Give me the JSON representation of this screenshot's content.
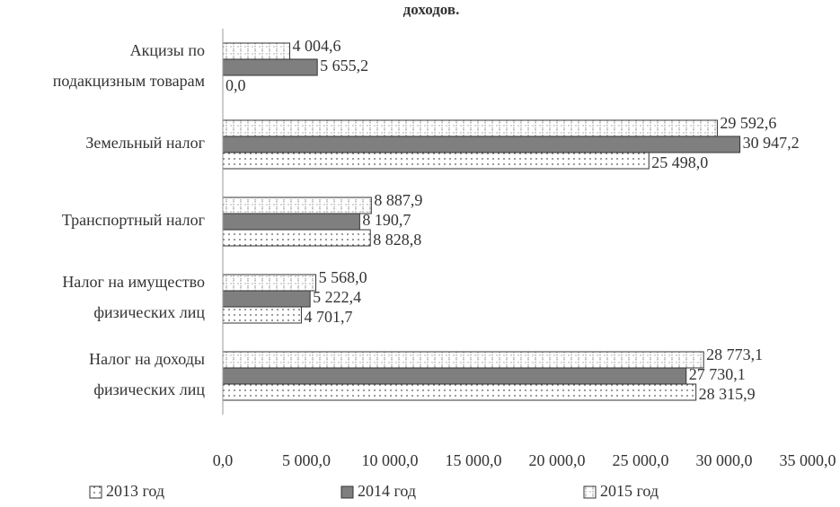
{
  "chart_data": {
    "type": "bar",
    "orientation": "horizontal",
    "title": "доходов.",
    "categories": [
      "Акцизы по\nподакцизным товарам",
      "Земельный налог",
      "Транспортный налог",
      "Налог на имущество\nфизических лиц",
      "Налог на доходы\nфизических лиц"
    ],
    "series": [
      {
        "name": "2013 год",
        "color": "#ffffff",
        "pattern": "dots",
        "values": [
          0.0,
          25498.0,
          8828.8,
          4701.7,
          28315.9
        ],
        "value_labels": [
          "0,0",
          "25 498,0",
          "8 828,8",
          "4 701,7",
          "28 315,9"
        ]
      },
      {
        "name": "2014 год",
        "color": "#7f7f7f",
        "pattern": "solid",
        "values": [
          5655.2,
          30947.2,
          8190.7,
          5222.4,
          27730.1
        ],
        "value_labels": [
          "5 655,2",
          "30 947,2",
          "8 190,7",
          "5 222,4",
          "27 730,1"
        ]
      },
      {
        "name": "2015 год",
        "color": "#ffffff",
        "pattern": "grid",
        "values": [
          4004.6,
          29592.6,
          8887.9,
          5568.0,
          28773.1
        ],
        "value_labels": [
          "4 004,6",
          "29 592,6",
          "8 887,9",
          "5 568,0",
          "28 773,1"
        ]
      }
    ],
    "xlim": [
      0,
      35000
    ],
    "xticks": [
      {
        "value": 0,
        "label": "0,0"
      },
      {
        "value": 5000,
        "label": "5 000,0"
      },
      {
        "value": 10000,
        "label": "10 000,0"
      },
      {
        "value": 15000,
        "label": "15 000,0"
      },
      {
        "value": 20000,
        "label": "20 000,0"
      },
      {
        "value": 25000,
        "label": "25 000,0"
      },
      {
        "value": 30000,
        "label": "30 000,0"
      },
      {
        "value": 35000,
        "label": "35 000,0"
      }
    ],
    "legend": "bottom"
  }
}
